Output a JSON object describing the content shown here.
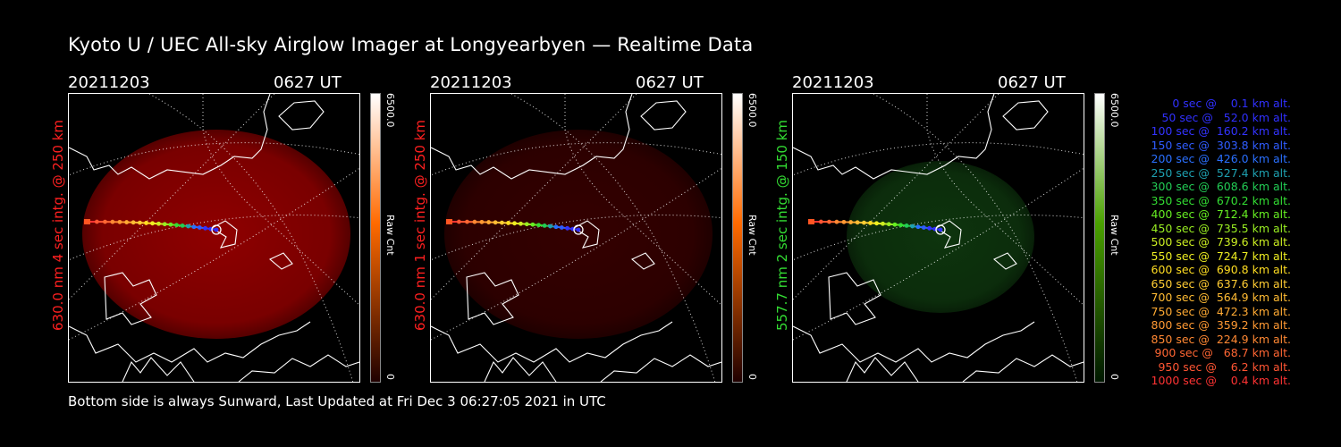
{
  "title": "Kyoto U / UEC All-sky Airglow Imager at Longyearbyen — Realtime Data",
  "panels": [
    {
      "date": "20211203",
      "time": "0627 UT",
      "label": "630.0 nm 4 sec intg. @ 250 km",
      "label_color": "#ff2020",
      "cbar_max": "6500.0",
      "cbar_unit": "Raw Cnt",
      "cbar_min": "0",
      "glow_color": "#a80000",
      "glow_level": 0.85,
      "cbar_top": "#ffffff",
      "cbar_mid": "#ff6a00",
      "cbar_bottom": "#200000"
    },
    {
      "date": "20211203",
      "time": "0627 UT",
      "label": "630.0 nm 1 sec intg. @ 250 km",
      "label_color": "#ff2020",
      "cbar_max": "6500.0",
      "cbar_unit": "Raw Cnt",
      "cbar_min": "0",
      "glow_color": "#3a0000",
      "glow_level": 0.9,
      "cbar_top": "#ffffff",
      "cbar_mid": "#ff6a00",
      "cbar_bottom": "#200000"
    },
    {
      "date": "20211203",
      "time": "0627 UT",
      "label": "557.7 nm 2 sec intg. @ 150 km",
      "label_color": "#33dd33",
      "cbar_max": "6500.0",
      "cbar_unit": "Raw Cnt",
      "cbar_min": "0",
      "glow_color": "#0f3a0f",
      "glow_level": 0.9,
      "cbar_top": "#ffffff",
      "cbar_mid": "#4aa000",
      "cbar_bottom": "#001800"
    }
  ],
  "legend": [
    {
      "text": "   0 sec @    0.1 km alt.",
      "color": "#3030ff"
    },
    {
      "text": "  50 sec @   52.0 km alt.",
      "color": "#3030ff"
    },
    {
      "text": " 100 sec @  160.2 km alt.",
      "color": "#3333ff"
    },
    {
      "text": " 150 sec @  303.8 km alt.",
      "color": "#2f5cff"
    },
    {
      "text": " 200 sec @  426.0 km alt.",
      "color": "#2a70ff"
    },
    {
      "text": " 250 sec @  527.4 km alt.",
      "color": "#1ea0b0"
    },
    {
      "text": " 300 sec @  608.6 km alt.",
      "color": "#22cc55"
    },
    {
      "text": " 350 sec @  670.2 km alt.",
      "color": "#33dd33"
    },
    {
      "text": " 400 sec @  712.4 km alt.",
      "color": "#66ee22"
    },
    {
      "text": " 450 sec @  735.5 km alt.",
      "color": "#99ee22"
    },
    {
      "text": " 500 sec @  739.6 km alt.",
      "color": "#ccee22"
    },
    {
      "text": " 550 sec @  724.7 km alt.",
      "color": "#eeee22"
    },
    {
      "text": " 600 sec @  690.8 km alt.",
      "color": "#ffdd22"
    },
    {
      "text": " 650 sec @  637.6 km alt.",
      "color": "#ffcc33"
    },
    {
      "text": " 700 sec @  564.9 km alt.",
      "color": "#ffbb33"
    },
    {
      "text": " 750 sec @  472.3 km alt.",
      "color": "#ffaa33"
    },
    {
      "text": " 800 sec @  359.2 km alt.",
      "color": "#ff9933"
    },
    {
      "text": " 850 sec @  224.9 km alt.",
      "color": "#ff8833"
    },
    {
      "text": " 900 sec @   68.7 km alt.",
      "color": "#ff6633"
    },
    {
      "text": " 950 sec @    6.2 km alt.",
      "color": "#ff5533"
    },
    {
      "text": "1000 sec @    0.4 km alt.",
      "color": "#ff3333"
    }
  ],
  "footer": "Bottom side is always Sunward, Last Updated at Fri Dec  3 06:27:05 2021 in UTC"
}
